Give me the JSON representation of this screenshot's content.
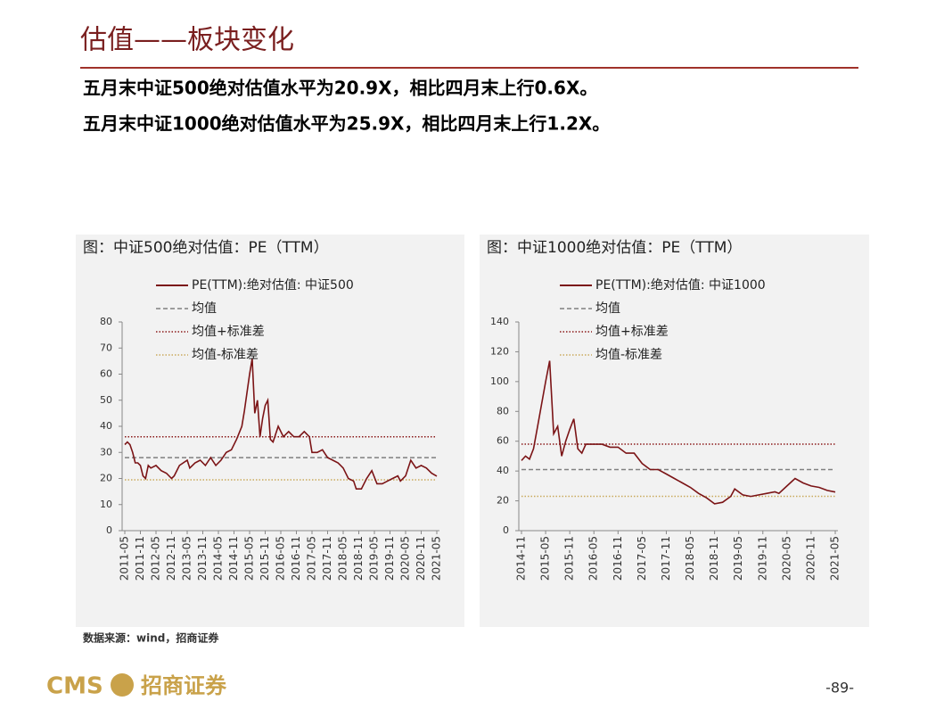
{
  "header": {
    "title": "估值——板块变化"
  },
  "bullets": [
    "五月末中证500绝对估值水平为20.9X，相比四月末上行0.6X。",
    "五月末中证1000绝对估值水平为25.9X，相比四月末上行1.2X。"
  ],
  "source": "数据来源：wind，招商证券",
  "footer": {
    "logo": "CMS",
    "company": "招商证券",
    "page": "-89-"
  },
  "chart_data": [
    {
      "type": "line",
      "title": "图：中证500绝对估值：PE（TTM）",
      "x": [
        "2011-05",
        "2011-06",
        "2011-07",
        "2011-08",
        "2011-09",
        "2011-10",
        "2011-11",
        "2011-12",
        "2012-01",
        "2012-02",
        "2012-03",
        "2012-05",
        "2012-07",
        "2012-09",
        "2012-11",
        "2012-12",
        "2013-02",
        "2013-05",
        "2013-06",
        "2013-08",
        "2013-10",
        "2013-12",
        "2014-02",
        "2014-04",
        "2014-06",
        "2014-08",
        "2014-10",
        "2014-12",
        "2015-02",
        "2015-03",
        "2015-04",
        "2015-05",
        "2015-06",
        "2015-07",
        "2015-08",
        "2015-09",
        "2015-10",
        "2015-11",
        "2015-12",
        "2016-01",
        "2016-02",
        "2016-04",
        "2016-06",
        "2016-08",
        "2016-10",
        "2016-12",
        "2017-02",
        "2017-04",
        "2017-05",
        "2017-07",
        "2017-09",
        "2017-11",
        "2018-01",
        "2018-03",
        "2018-05",
        "2018-07",
        "2018-09",
        "2018-10",
        "2018-12",
        "2019-02",
        "2019-04",
        "2019-06",
        "2019-08",
        "2019-10",
        "2019-12",
        "2020-02",
        "2020-03",
        "2020-05",
        "2020-07",
        "2020-09",
        "2020-11",
        "2021-01",
        "2021-03",
        "2021-05"
      ],
      "series": [
        {
          "name": "PE(TTM):绝对估值: 中证500",
          "color": "#7b1416",
          "values": [
            33,
            34,
            33,
            30,
            26,
            26,
            25,
            21,
            20,
            25,
            24,
            25,
            23,
            22,
            20,
            21,
            25,
            27,
            24,
            26,
            27,
            25,
            28,
            25,
            27,
            30,
            31,
            35,
            40,
            46,
            53,
            60,
            66,
            45,
            50,
            36,
            43,
            48,
            50,
            35,
            34,
            40,
            36,
            38,
            36,
            36,
            38,
            36,
            30,
            30,
            31,
            28,
            27,
            26,
            24,
            20,
            19,
            16,
            16,
            20,
            23,
            18,
            18,
            19,
            20,
            21,
            19,
            21,
            27,
            24,
            25,
            24,
            22,
            20.9
          ]
        }
      ],
      "hlines": [
        {
          "name": "均值",
          "value": 28,
          "color": "#808080",
          "dash": "5,3"
        },
        {
          "name": "均值+标准差",
          "value": 36,
          "color": "#8b1a1a",
          "dash": "1.5,2"
        },
        {
          "name": "均值-标准差",
          "value": 19.5,
          "color": "#c9a95c",
          "dash": "1.5,2"
        }
      ],
      "xlim": [
        "2011-05",
        "2021-05"
      ],
      "xticks": [
        "2011-05",
        "2011-11",
        "2012-05",
        "2012-11",
        "2013-05",
        "2013-11",
        "2014-05",
        "2014-11",
        "2015-05",
        "2015-11",
        "2016-05",
        "2016-11",
        "2017-05",
        "2017-11",
        "2018-05",
        "2018-11",
        "2019-05",
        "2019-11",
        "2020-05",
        "2020-11",
        "2021-05"
      ],
      "ylim": [
        0,
        80
      ],
      "yticks": [
        0,
        10,
        20,
        30,
        40,
        50,
        60,
        70,
        80
      ]
    },
    {
      "type": "line",
      "title": "图：中证1000绝对估值：PE（TTM）",
      "x": [
        "2014-11",
        "2014-12",
        "2015-01",
        "2015-02",
        "2015-03",
        "2015-04",
        "2015-05",
        "2015-06",
        "2015-07",
        "2015-08",
        "2015-09",
        "2015-10",
        "2015-11",
        "2015-12",
        "2016-01",
        "2016-02",
        "2016-03",
        "2016-05",
        "2016-07",
        "2016-09",
        "2016-11",
        "2017-01",
        "2017-03",
        "2017-05",
        "2017-07",
        "2017-09",
        "2017-11",
        "2018-01",
        "2018-03",
        "2018-05",
        "2018-07",
        "2018-09",
        "2018-11",
        "2019-01",
        "2019-03",
        "2019-04",
        "2019-06",
        "2019-08",
        "2019-10",
        "2019-12",
        "2020-02",
        "2020-03",
        "2020-05",
        "2020-07",
        "2020-09",
        "2020-11",
        "2021-01",
        "2021-03",
        "2021-05"
      ],
      "series": [
        {
          "name": "PE(TTM):绝对估值: 中证1000",
          "color": "#7b1416",
          "values": [
            47,
            50,
            48,
            55,
            70,
            85,
            100,
            114,
            65,
            70,
            50,
            60,
            68,
            75,
            55,
            52,
            58,
            58,
            58,
            56,
            56,
            52,
            52,
            45,
            41,
            41,
            38,
            35,
            32,
            29,
            25,
            22,
            18,
            19,
            23,
            28,
            24,
            23,
            24,
            25,
            26,
            25,
            30,
            35,
            32,
            30,
            29,
            27,
            25.9
          ]
        }
      ],
      "hlines": [
        {
          "name": "均值",
          "value": 41,
          "color": "#808080",
          "dash": "5,3"
        },
        {
          "name": "均值+标准差",
          "value": 58,
          "color": "#8b1a1a",
          "dash": "1.5,2"
        },
        {
          "name": "均值-标准差",
          "value": 23,
          "color": "#c9a95c",
          "dash": "1.5,2"
        }
      ],
      "xlim": [
        "2014-11",
        "2021-05"
      ],
      "xticks": [
        "2014-11",
        "2015-05",
        "2015-11",
        "2016-05",
        "2016-11",
        "2017-05",
        "2017-11",
        "2018-05",
        "2018-11",
        "2019-05",
        "2019-11",
        "2020-05",
        "2020-11",
        "2021-05"
      ],
      "ylim": [
        0,
        140
      ],
      "yticks": [
        0,
        20,
        40,
        60,
        80,
        100,
        120,
        140
      ]
    }
  ]
}
